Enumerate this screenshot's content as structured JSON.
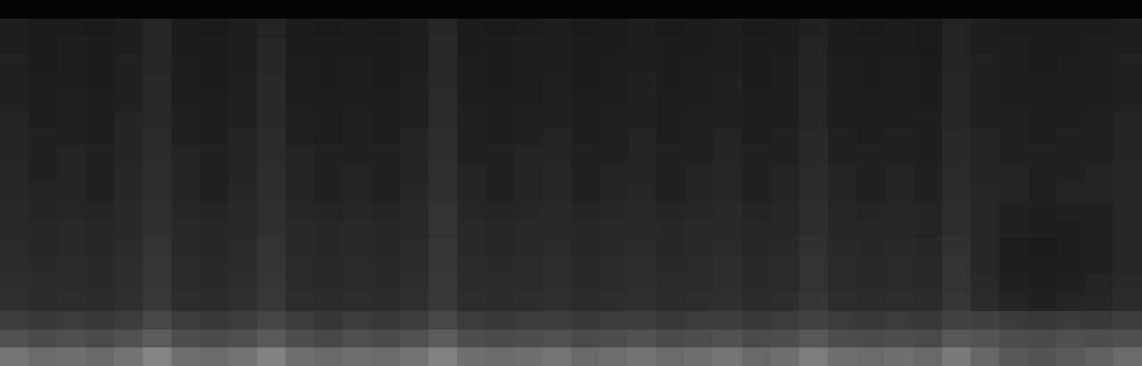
{
  "chart_data": {
    "type": "heatmap",
    "color": "gray",
    "tick_labels": false,
    "zlim": [
      0,
      1
    ],
    "cells": [
      [
        0.46,
        0.42,
        0.44,
        0.41,
        0.45,
        0.52,
        0.43,
        0.42,
        0.45,
        0.51,
        0.43,
        0.41,
        0.44,
        0.42,
        0.45,
        0.51,
        0.43,
        0.42,
        0.44,
        0.46,
        0.41,
        0.43,
        0.45,
        0.42,
        0.44,
        0.46,
        0.41,
        0.43,
        0.49,
        0.43,
        0.42,
        0.44,
        0.41,
        0.48,
        0.4,
        0.34,
        0.33,
        0.35,
        0.38,
        0.42
      ],
      [
        0.32,
        0.29,
        0.31,
        0.29,
        0.32,
        0.36,
        0.3,
        0.29,
        0.31,
        0.35,
        0.3,
        0.28,
        0.31,
        0.29,
        0.32,
        0.36,
        0.3,
        0.29,
        0.3,
        0.32,
        0.29,
        0.3,
        0.32,
        0.29,
        0.3,
        0.32,
        0.29,
        0.3,
        0.34,
        0.3,
        0.29,
        0.3,
        0.29,
        0.34,
        0.33,
        0.3,
        0.29,
        0.31,
        0.3,
        0.31
      ],
      [
        0.24,
        0.22,
        0.23,
        0.22,
        0.24,
        0.28,
        0.23,
        0.22,
        0.24,
        0.27,
        0.23,
        0.21,
        0.23,
        0.22,
        0.24,
        0.28,
        0.23,
        0.22,
        0.23,
        0.24,
        0.22,
        0.23,
        0.24,
        0.22,
        0.23,
        0.24,
        0.22,
        0.23,
        0.26,
        0.23,
        0.22,
        0.23,
        0.22,
        0.26,
        0.25,
        0.23,
        0.22,
        0.23,
        0.22,
        0.24
      ],
      [
        0.19,
        0.17,
        0.18,
        0.17,
        0.19,
        0.22,
        0.18,
        0.17,
        0.19,
        0.22,
        0.18,
        0.17,
        0.18,
        0.17,
        0.19,
        0.22,
        0.18,
        0.17,
        0.18,
        0.19,
        0.17,
        0.18,
        0.19,
        0.17,
        0.18,
        0.19,
        0.17,
        0.18,
        0.21,
        0.18,
        0.17,
        0.18,
        0.17,
        0.21,
        0.17,
        0.14,
        0.13,
        0.14,
        0.15,
        0.17
      ],
      [
        0.18,
        0.17,
        0.17,
        0.16,
        0.18,
        0.21,
        0.17,
        0.16,
        0.18,
        0.21,
        0.17,
        0.16,
        0.17,
        0.16,
        0.18,
        0.22,
        0.17,
        0.17,
        0.17,
        0.18,
        0.16,
        0.17,
        0.18,
        0.17,
        0.17,
        0.18,
        0.16,
        0.17,
        0.2,
        0.17,
        0.16,
        0.17,
        0.16,
        0.2,
        0.16,
        0.13,
        0.12,
        0.13,
        0.14,
        0.16
      ],
      [
        0.17,
        0.16,
        0.17,
        0.16,
        0.18,
        0.21,
        0.17,
        0.16,
        0.17,
        0.2,
        0.17,
        0.16,
        0.17,
        0.16,
        0.17,
        0.21,
        0.17,
        0.16,
        0.17,
        0.18,
        0.16,
        0.17,
        0.18,
        0.16,
        0.17,
        0.18,
        0.16,
        0.17,
        0.2,
        0.17,
        0.16,
        0.17,
        0.16,
        0.2,
        0.15,
        0.12,
        0.12,
        0.12,
        0.13,
        0.15
      ],
      [
        0.17,
        0.15,
        0.16,
        0.15,
        0.17,
        0.2,
        0.16,
        0.15,
        0.17,
        0.2,
        0.16,
        0.15,
        0.16,
        0.15,
        0.17,
        0.21,
        0.16,
        0.15,
        0.16,
        0.17,
        0.15,
        0.16,
        0.17,
        0.15,
        0.16,
        0.17,
        0.15,
        0.16,
        0.19,
        0.16,
        0.15,
        0.16,
        0.15,
        0.19,
        0.15,
        0.12,
        0.11,
        0.12,
        0.13,
        0.15
      ],
      [
        0.16,
        0.15,
        0.16,
        0.15,
        0.16,
        0.19,
        0.16,
        0.15,
        0.16,
        0.19,
        0.16,
        0.15,
        0.16,
        0.15,
        0.16,
        0.2,
        0.16,
        0.15,
        0.16,
        0.16,
        0.15,
        0.16,
        0.16,
        0.15,
        0.16,
        0.16,
        0.15,
        0.15,
        0.18,
        0.15,
        0.15,
        0.15,
        0.14,
        0.18,
        0.15,
        0.13,
        0.12,
        0.12,
        0.13,
        0.15
      ],
      [
        0.16,
        0.14,
        0.15,
        0.14,
        0.16,
        0.19,
        0.15,
        0.14,
        0.16,
        0.19,
        0.15,
        0.14,
        0.15,
        0.14,
        0.16,
        0.2,
        0.15,
        0.14,
        0.15,
        0.16,
        0.14,
        0.15,
        0.16,
        0.14,
        0.15,
        0.16,
        0.14,
        0.15,
        0.18,
        0.15,
        0.14,
        0.15,
        0.14,
        0.18,
        0.15,
        0.13,
        0.12,
        0.13,
        0.13,
        0.15
      ],
      [
        0.15,
        0.14,
        0.14,
        0.13,
        0.15,
        0.18,
        0.14,
        0.13,
        0.15,
        0.18,
        0.14,
        0.13,
        0.14,
        0.13,
        0.15,
        0.19,
        0.14,
        0.13,
        0.14,
        0.15,
        0.13,
        0.14,
        0.15,
        0.13,
        0.14,
        0.15,
        0.13,
        0.14,
        0.17,
        0.14,
        0.13,
        0.14,
        0.13,
        0.17,
        0.15,
        0.14,
        0.13,
        0.14,
        0.14,
        0.15
      ],
      [
        0.15,
        0.13,
        0.14,
        0.13,
        0.15,
        0.18,
        0.14,
        0.13,
        0.14,
        0.18,
        0.14,
        0.13,
        0.14,
        0.13,
        0.14,
        0.19,
        0.14,
        0.13,
        0.14,
        0.15,
        0.13,
        0.14,
        0.14,
        0.13,
        0.14,
        0.15,
        0.13,
        0.14,
        0.17,
        0.14,
        0.13,
        0.14,
        0.13,
        0.17,
        0.14,
        0.14,
        0.13,
        0.13,
        0.14,
        0.15
      ],
      [
        0.14,
        0.13,
        0.14,
        0.13,
        0.14,
        0.17,
        0.14,
        0.13,
        0.14,
        0.17,
        0.14,
        0.13,
        0.13,
        0.13,
        0.14,
        0.18,
        0.13,
        0.13,
        0.14,
        0.14,
        0.13,
        0.13,
        0.14,
        0.13,
        0.13,
        0.14,
        0.13,
        0.13,
        0.16,
        0.13,
        0.13,
        0.13,
        0.12,
        0.16,
        0.14,
        0.13,
        0.13,
        0.13,
        0.13,
        0.14
      ],
      [
        0.14,
        0.13,
        0.13,
        0.12,
        0.14,
        0.17,
        0.13,
        0.12,
        0.14,
        0.17,
        0.13,
        0.12,
        0.13,
        0.12,
        0.14,
        0.18,
        0.13,
        0.12,
        0.13,
        0.14,
        0.12,
        0.13,
        0.14,
        0.12,
        0.13,
        0.14,
        0.12,
        0.13,
        0.16,
        0.13,
        0.12,
        0.13,
        0.12,
        0.16,
        0.14,
        0.13,
        0.12,
        0.13,
        0.13,
        0.14
      ],
      [
        0.14,
        0.12,
        0.13,
        0.12,
        0.14,
        0.16,
        0.13,
        0.12,
        0.13,
        0.16,
        0.13,
        0.12,
        0.13,
        0.12,
        0.13,
        0.17,
        0.13,
        0.12,
        0.13,
        0.13,
        0.12,
        0.13,
        0.13,
        0.12,
        0.13,
        0.13,
        0.12,
        0.12,
        0.15,
        0.12,
        0.12,
        0.12,
        0.12,
        0.15,
        0.13,
        0.13,
        0.12,
        0.12,
        0.13,
        0.14
      ],
      [
        0.13,
        0.12,
        0.13,
        0.12,
        0.13,
        0.16,
        0.12,
        0.12,
        0.13,
        0.16,
        0.12,
        0.12,
        0.12,
        0.12,
        0.13,
        0.17,
        0.12,
        0.12,
        0.12,
        0.13,
        0.12,
        0.12,
        0.13,
        0.12,
        0.12,
        0.13,
        0.12,
        0.12,
        0.15,
        0.12,
        0.12,
        0.12,
        0.11,
        0.15,
        0.13,
        0.12,
        0.12,
        0.12,
        0.12,
        0.13
      ],
      [
        0.13,
        0.12,
        0.12,
        0.11,
        0.13,
        0.16,
        0.12,
        0.11,
        0.13,
        0.16,
        0.12,
        0.11,
        0.12,
        0.11,
        0.13,
        0.16,
        0.12,
        0.11,
        0.12,
        0.13,
        0.11,
        0.12,
        0.13,
        0.11,
        0.12,
        0.13,
        0.11,
        0.12,
        0.14,
        0.12,
        0.11,
        0.12,
        0.11,
        0.15,
        0.13,
        0.12,
        0.12,
        0.12,
        0.12,
        0.13
      ],
      [
        0.13,
        0.11,
        0.12,
        0.11,
        0.13,
        0.15,
        0.12,
        0.11,
        0.12,
        0.15,
        0.12,
        0.11,
        0.12,
        0.11,
        0.12,
        0.16,
        0.12,
        0.11,
        0.12,
        0.12,
        0.11,
        0.12,
        0.12,
        0.11,
        0.12,
        0.12,
        0.11,
        0.12,
        0.14,
        0.12,
        0.11,
        0.12,
        0.11,
        0.14,
        0.13,
        0.12,
        0.11,
        0.12,
        0.12,
        0.13
      ],
      [
        0.12,
        0.11,
        0.12,
        0.11,
        0.12,
        0.15,
        0.11,
        0.11,
        0.12,
        0.15,
        0.11,
        0.11,
        0.11,
        0.11,
        0.12,
        0.16,
        0.11,
        0.11,
        0.12,
        0.12,
        0.11,
        0.11,
        0.12,
        0.11,
        0.11,
        0.12,
        0.11,
        0.11,
        0.14,
        0.11,
        0.11,
        0.11,
        0.1,
        0.14,
        0.12,
        0.12,
        0.11,
        0.11,
        0.12,
        0.12
      ],
      [
        0.12,
        0.11,
        0.11,
        0.1,
        0.12,
        0.15,
        0.11,
        0.1,
        0.12,
        0.14,
        0.11,
        0.1,
        0.11,
        0.1,
        0.12,
        0.15,
        0.11,
        0.1,
        0.11,
        0.12,
        0.1,
        0.11,
        0.12,
        0.1,
        0.11,
        0.12,
        0.1,
        0.11,
        0.13,
        0.11,
        0.1,
        0.11,
        0.1,
        0.14,
        0.12,
        0.11,
        0.11,
        0.11,
        0.11,
        0.12
      ],
      [
        0.02,
        0.02,
        0.02,
        0.02,
        0.02,
        0.02,
        0.02,
        0.02,
        0.02,
        0.02,
        0.02,
        0.02,
        0.02,
        0.02,
        0.02,
        0.02,
        0.02,
        0.02,
        0.02,
        0.02,
        0.02,
        0.02,
        0.02,
        0.02,
        0.02,
        0.02,
        0.02,
        0.02,
        0.02,
        0.02,
        0.02,
        0.02,
        0.02,
        0.02,
        0.02,
        0.02,
        0.02,
        0.02,
        0.02,
        0.02
      ]
    ]
  }
}
